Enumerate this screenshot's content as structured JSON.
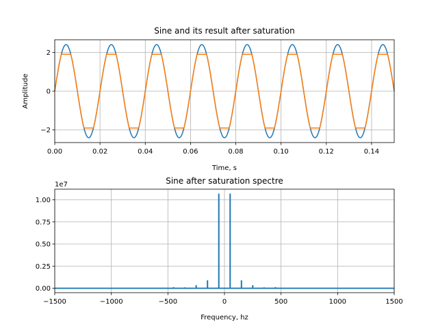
{
  "chart_data": [
    {
      "type": "line",
      "title": "Sine and its result after saturation",
      "xlabel": "Time, s",
      "ylabel": "Amplitude",
      "xlim": [
        0,
        0.15
      ],
      "ylim": [
        -2.65,
        2.65
      ],
      "grid": true,
      "xticks": [
        0.0,
        0.02,
        0.04,
        0.06,
        0.08,
        0.1,
        0.12,
        0.14
      ],
      "xtick_labels": [
        "0.00",
        "0.02",
        "0.04",
        "0.06",
        "0.08",
        "0.10",
        "0.12",
        "0.14"
      ],
      "yticks": [
        -2,
        0,
        2
      ],
      "ytick_labels": [
        "−2",
        "0",
        "2"
      ],
      "signal": {
        "frequency_hz": 50,
        "amplitude": 2.4,
        "clip_level": 1.9
      },
      "series": [
        {
          "color": "#1f77b4",
          "description": "sine, amplitude 2.4, 50 Hz"
        },
        {
          "color": "#ff7f0e",
          "description": "sine clipped at ±1.9"
        }
      ]
    },
    {
      "type": "line",
      "title": "Sine after saturation spectre",
      "xlabel": "Frequency, hz",
      "ylabel": "",
      "scale_label": "1e7",
      "xlim": [
        -1500,
        1500
      ],
      "ylim": [
        -0.05,
        1.12
      ],
      "grid": true,
      "xticks": [
        -1500,
        -1000,
        -500,
        0,
        500,
        1000,
        1500
      ],
      "xtick_labels": [
        "−1500",
        "−1000",
        "−500",
        "0",
        "500",
        "1000",
        "1500"
      ],
      "yticks": [
        0.0,
        0.25,
        0.5,
        0.75,
        1.0
      ],
      "ytick_labels": [
        "0.00",
        "0.25",
        "0.50",
        "0.75",
        "1.00"
      ],
      "series": [
        {
          "color": "#1f77b4",
          "peaks": [
            {
              "x": -450,
              "y": 0.012
            },
            {
              "x": -350,
              "y": 0.01
            },
            {
              "x": -250,
              "y": 0.035
            },
            {
              "x": -150,
              "y": 0.09
            },
            {
              "x": -50,
              "y": 1.07
            },
            {
              "x": 50,
              "y": 1.07
            },
            {
              "x": 150,
              "y": 0.09
            },
            {
              "x": 250,
              "y": 0.035
            },
            {
              "x": 350,
              "y": 0.01
            },
            {
              "x": 450,
              "y": 0.012
            }
          ]
        }
      ]
    }
  ]
}
